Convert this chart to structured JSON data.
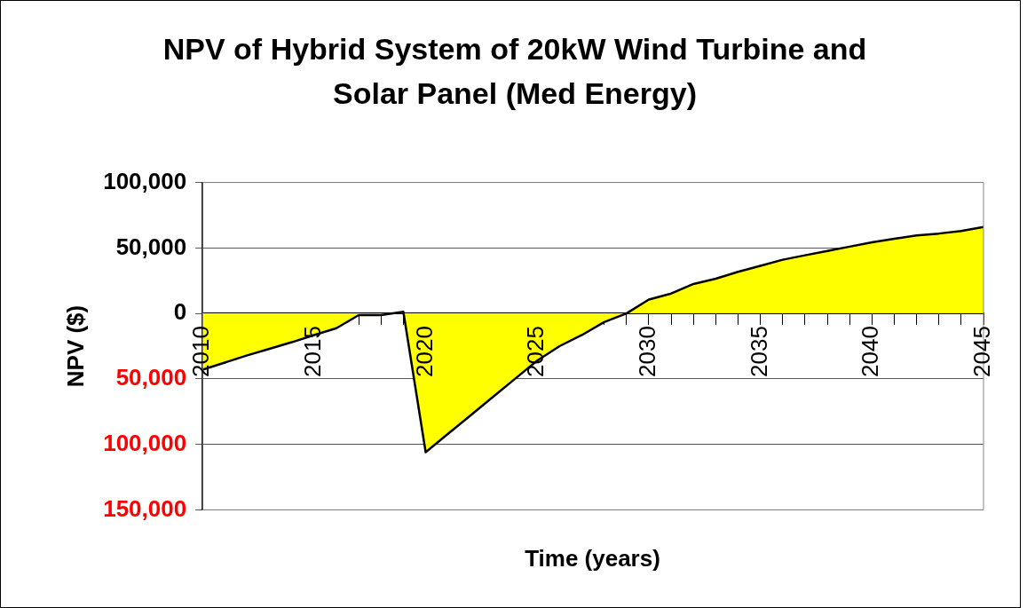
{
  "chart_data": {
    "type": "area",
    "title": "NPV of Hybrid System of 20kW Wind Turbine and Solar Panel (Med Energy)",
    "xlabel": "Time (years)",
    "ylabel": "NPV ($)",
    "x": [
      2010,
      2011,
      2012,
      2013,
      2014,
      2015,
      2016,
      2017,
      2018,
      2019,
      2020,
      2021,
      2022,
      2023,
      2024,
      2025,
      2026,
      2027,
      2028,
      2029,
      2030,
      2031,
      2032,
      2033,
      2034,
      2035,
      2036,
      2037,
      2038,
      2039,
      2040,
      2041,
      2042,
      2043,
      2044,
      2045
    ],
    "series": [
      {
        "color": "#ffff00",
        "values": [
          -43000,
          -37500,
          -32000,
          -27000,
          -22000,
          -16500,
          -11300,
          -1300,
          -1300,
          1300,
          -106000,
          -92000,
          -78000,
          -64000,
          -50000,
          -36000,
          -25000,
          -16500,
          -6600,
          0,
          10600,
          15200,
          22500,
          26500,
          31800,
          36400,
          41000,
          44400,
          47700,
          51000,
          54300,
          57000,
          59600,
          61000,
          63000,
          66000
        ]
      }
    ],
    "xlim": [
      2010,
      2045
    ],
    "xticks": [
      2010,
      {
        "value": 2011,
        "label": null
      },
      {
        "value": 2012,
        "label": null
      },
      {
        "value": 2013,
        "label": null
      },
      {
        "value": 2014,
        "label": null
      },
      2015,
      {
        "value": 2016,
        "label": null
      },
      {
        "value": 2017,
        "label": null
      },
      {
        "value": 2018,
        "label": null
      },
      {
        "value": 2019,
        "label": null
      },
      2020,
      {
        "value": 2021,
        "label": null
      },
      {
        "value": 2022,
        "label": null
      },
      {
        "value": 2023,
        "label": null
      },
      {
        "value": 2024,
        "label": null
      },
      2025,
      {
        "value": 2026,
        "label": null
      },
      {
        "value": 2027,
        "label": null
      },
      {
        "value": 2028,
        "label": null
      },
      {
        "value": 2029,
        "label": null
      },
      2030,
      {
        "value": 2031,
        "label": null
      },
      {
        "value": 2032,
        "label": null
      },
      {
        "value": 2033,
        "label": null
      },
      {
        "value": 2034,
        "label": null
      },
      2035,
      {
        "value": 2036,
        "label": null
      },
      {
        "value": 2037,
        "label": null
      },
      {
        "value": 2038,
        "label": null
      },
      {
        "value": 2039,
        "label": null
      },
      2040,
      {
        "value": 2041,
        "label": null
      },
      {
        "value": 2042,
        "label": null
      },
      {
        "value": 2043,
        "label": null
      },
      {
        "value": 2044,
        "label": null
      },
      2045
    ],
    "ylim": [
      -150000,
      100000
    ],
    "yticks": [
      {
        "value": -150000,
        "label": "150,000"
      },
      {
        "value": -100000,
        "label": "100,000"
      },
      {
        "value": -50000,
        "label": "50,000"
      },
      0,
      {
        "value": 50000,
        "label": "50,000"
      },
      {
        "value": 100000,
        "label": "100,000"
      }
    ],
    "grid": "y",
    "legend": false,
    "marker": "none",
    "line_style": "solid"
  }
}
